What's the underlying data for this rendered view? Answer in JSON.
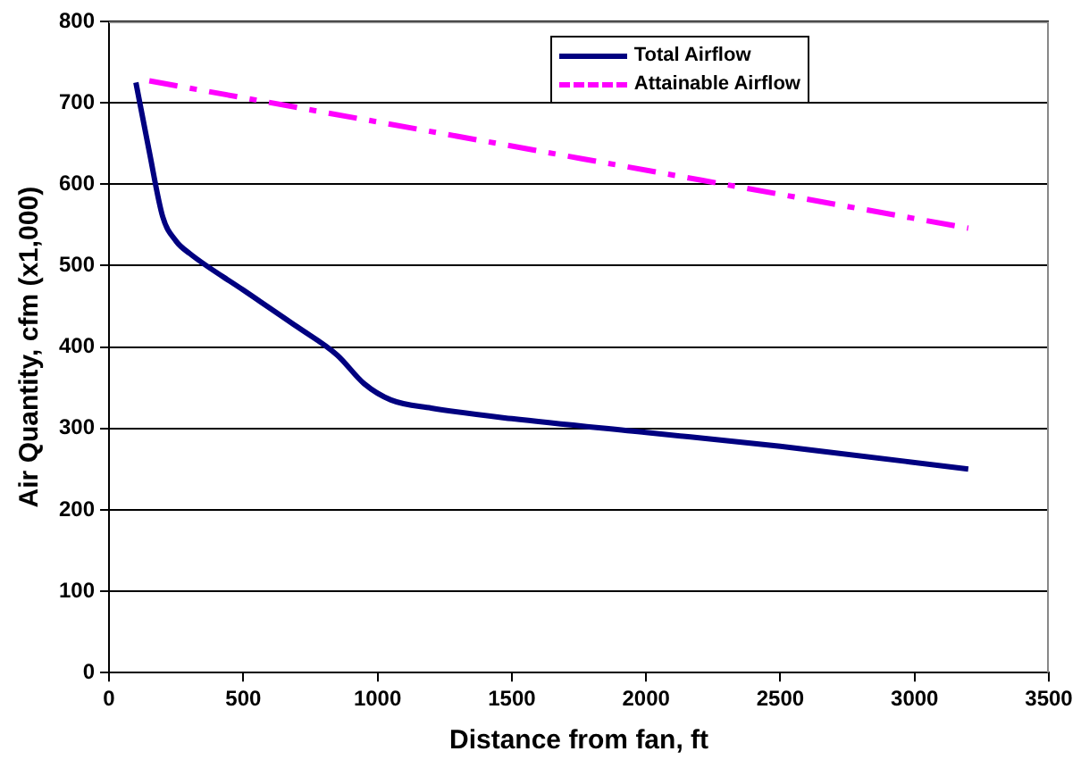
{
  "chart_data": {
    "type": "line",
    "xlabel": "Distance from fan, ft",
    "ylabel": "Air Quantity, cfm (x1,000)",
    "xlim": [
      0,
      3500
    ],
    "xticks": [
      0,
      500,
      1000,
      1500,
      2000,
      2500,
      3000,
      3500
    ],
    "ylim": [
      0,
      800
    ],
    "yticks": [
      0,
      100,
      200,
      300,
      400,
      500,
      600,
      700,
      800
    ],
    "grid": "y",
    "legend": "top right",
    "marker": "none",
    "series": [
      {
        "name": "Total Airflow",
        "color": "#000080",
        "line_style": "solid",
        "x": [
          100,
          150,
          200,
          250,
          300,
          500,
          700,
          850,
          950,
          1050,
          1200,
          1500,
          2000,
          2500,
          3200
        ],
        "values": [
          725,
          640,
          560,
          530,
          515,
          470,
          425,
          390,
          355,
          335,
          325,
          312,
          295,
          278,
          250
        ]
      },
      {
        "name": "Attainable Airflow",
        "color": "#ff00ff",
        "line_style": "dashdot",
        "x": [
          150,
          3200
        ],
        "values": [
          727,
          546
        ]
      }
    ]
  }
}
